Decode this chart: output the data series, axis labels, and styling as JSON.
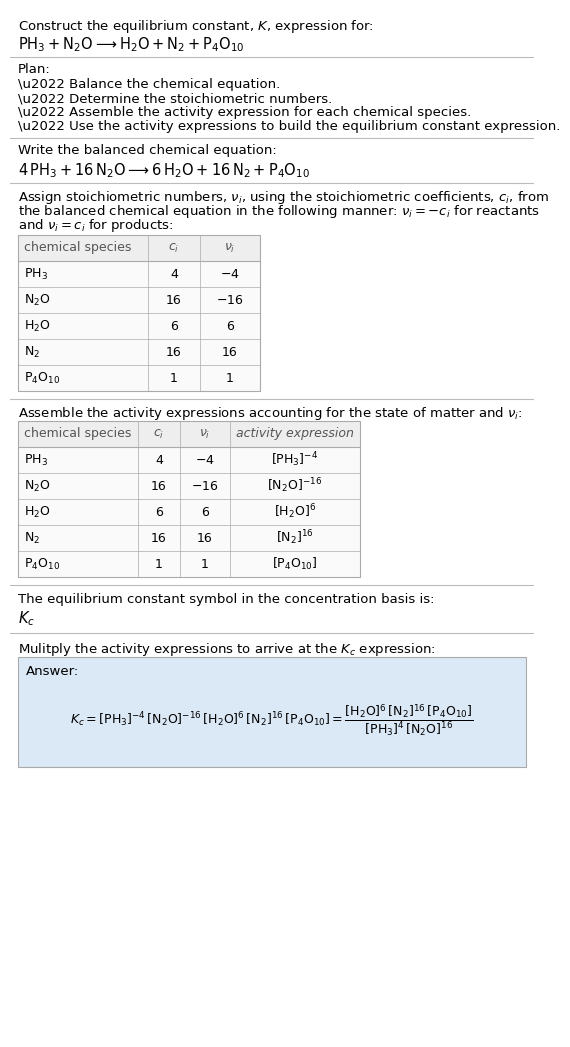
{
  "title_line1": "Construct the equilibrium constant, $K$, expression for:",
  "title_line2": "$\\mathrm{PH_3 + N_2O \\longrightarrow H_2O + N_2 + P_4O_{10}}$",
  "plan_header": "Plan:",
  "plan_items": [
    "\\u2022 Balance the chemical equation.",
    "\\u2022 Determine the stoichiometric numbers.",
    "\\u2022 Assemble the activity expression for each chemical species.",
    "\\u2022 Use the activity expressions to build the equilibrium constant expression."
  ],
  "balanced_header": "Write the balanced chemical equation:",
  "balanced_eq": "$\\mathrm{4\\,PH_3 + 16\\,N_2O \\longrightarrow 6\\,H_2O + 16\\,N_2 + P_4O_{10}}$",
  "stoich_text1": "Assign stoichiometric numbers, $\\nu_i$, using the stoichiometric coefficients, $c_i$, from",
  "stoich_text2": "the balanced chemical equation in the following manner: $\\nu_i = -c_i$ for reactants",
  "stoich_text3": "and $\\nu_i = c_i$ for products:",
  "table1_headers": [
    "chemical species",
    "$c_i$",
    "$\\nu_i$"
  ],
  "table1_rows": [
    [
      "$\\mathrm{PH_3}$",
      "4",
      "$-4$"
    ],
    [
      "$\\mathrm{N_2O}$",
      "16",
      "$-16$"
    ],
    [
      "$\\mathrm{H_2O}$",
      "6",
      "6"
    ],
    [
      "$\\mathrm{N_2}$",
      "16",
      "16"
    ],
    [
      "$\\mathrm{P_4O_{10}}$",
      "1",
      "1"
    ]
  ],
  "activity_header": "Assemble the activity expressions accounting for the state of matter and $\\nu_i$:",
  "table2_headers": [
    "chemical species",
    "$c_i$",
    "$\\nu_i$",
    "activity expression"
  ],
  "table2_rows": [
    [
      "$\\mathrm{PH_3}$",
      "4",
      "$-4$",
      "$[\\mathrm{PH_3}]^{-4}$"
    ],
    [
      "$\\mathrm{N_2O}$",
      "16",
      "$-16$",
      "$[\\mathrm{N_2O}]^{-16}$"
    ],
    [
      "$\\mathrm{H_2O}$",
      "6",
      "6",
      "$[\\mathrm{H_2O}]^{6}$"
    ],
    [
      "$\\mathrm{N_2}$",
      "16",
      "16",
      "$[\\mathrm{N_2}]^{16}$"
    ],
    [
      "$\\mathrm{P_4O_{10}}$",
      "1",
      "1",
      "$[\\mathrm{P_4O_{10}}]$"
    ]
  ],
  "kc_header": "The equilibrium constant symbol in the concentration basis is:",
  "kc_symbol": "$K_c$",
  "multiply_header": "Mulitply the activity expressions to arrive at the $K_c$ expression:",
  "answer_label": "Answer:",
  "bg_color": "#ffffff",
  "answer_bg": "#dbe8f5",
  "divider_color": "#bbbbbb",
  "text_color": "#000000",
  "table_header_bg": "#eeeeee",
  "table_row_bg": "#fafafa",
  "table_border": "#aaaaaa"
}
